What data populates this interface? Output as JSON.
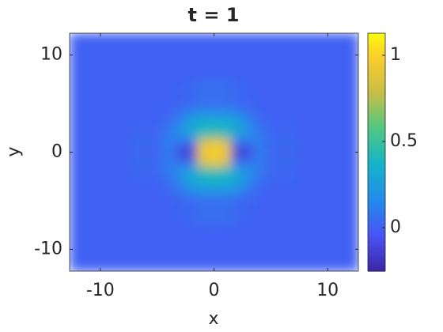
{
  "chart_data": {
    "type": "heatmap",
    "title": "t = 1",
    "xlabel": "x",
    "ylabel": "y",
    "x": [
      -10,
      -5,
      -4,
      -3,
      -2,
      -1,
      0,
      1,
      2,
      3,
      4,
      5,
      10
    ],
    "y": [
      -10,
      -5,
      -4,
      -3,
      -2,
      -1,
      0,
      1,
      2,
      3,
      4,
      5,
      10
    ],
    "z": [
      [
        0,
        0,
        0,
        0,
        0,
        0,
        0,
        0,
        0,
        0,
        0,
        0,
        0
      ],
      [
        0,
        0,
        0,
        0.01,
        0.03,
        0.05,
        0.05,
        0.05,
        0.03,
        0.01,
        0,
        0,
        0
      ],
      [
        0,
        0,
        0.02,
        0.08,
        0.15,
        0.2,
        0.2,
        0.2,
        0.15,
        0.08,
        0.02,
        0,
        0
      ],
      [
        0,
        0.01,
        0.05,
        0.15,
        0.3,
        0.35,
        0.35,
        0.35,
        0.3,
        0.15,
        0.05,
        0.01,
        0
      ],
      [
        0,
        0.02,
        0.1,
        0.2,
        0.3,
        0.4,
        0.45,
        0.4,
        0.3,
        0.2,
        0.1,
        0.02,
        0
      ],
      [
        0,
        0.03,
        0.12,
        0.05,
        0.05,
        0.85,
        0.9,
        0.85,
        0.05,
        0.05,
        0.12,
        0.03,
        0
      ],
      [
        0,
        0.02,
        0.1,
        -0.1,
        -0.2,
        0.95,
        1,
        0.95,
        -0.2,
        -0.1,
        0.1,
        0.02,
        0
      ],
      [
        0,
        0.03,
        0.12,
        0.05,
        0.05,
        0.85,
        0.9,
        0.85,
        0.05,
        0.05,
        0.12,
        0.03,
        0
      ],
      [
        0,
        0.02,
        0.1,
        0.2,
        0.3,
        0.4,
        0.45,
        0.4,
        0.3,
        0.2,
        0.1,
        0.02,
        0
      ],
      [
        0,
        0.01,
        0.05,
        0.15,
        0.3,
        0.35,
        0.35,
        0.35,
        0.3,
        0.15,
        0.05,
        0.01,
        0
      ],
      [
        0,
        0,
        0.02,
        0.08,
        0.15,
        0.2,
        0.2,
        0.2,
        0.15,
        0.08,
        0.02,
        0,
        0
      ],
      [
        0,
        0,
        0,
        0.01,
        0.03,
        0.05,
        0.05,
        0.05,
        0.03,
        0.01,
        0,
        0,
        0
      ],
      [
        0,
        0,
        0,
        0,
        0,
        0,
        0,
        0,
        0,
        0,
        0,
        0,
        0
      ]
    ],
    "xlim": [
      -12.7,
      12.7
    ],
    "ylim": [
      -12.25,
      12.25
    ],
    "xticks": [
      -10,
      0,
      10
    ],
    "yticks": [
      -10,
      0,
      10
    ],
    "colormap": "parula",
    "clim": [
      -0.252,
      1.128
    ],
    "colorbar_ticks": [
      0,
      0.5,
      1
    ]
  }
}
